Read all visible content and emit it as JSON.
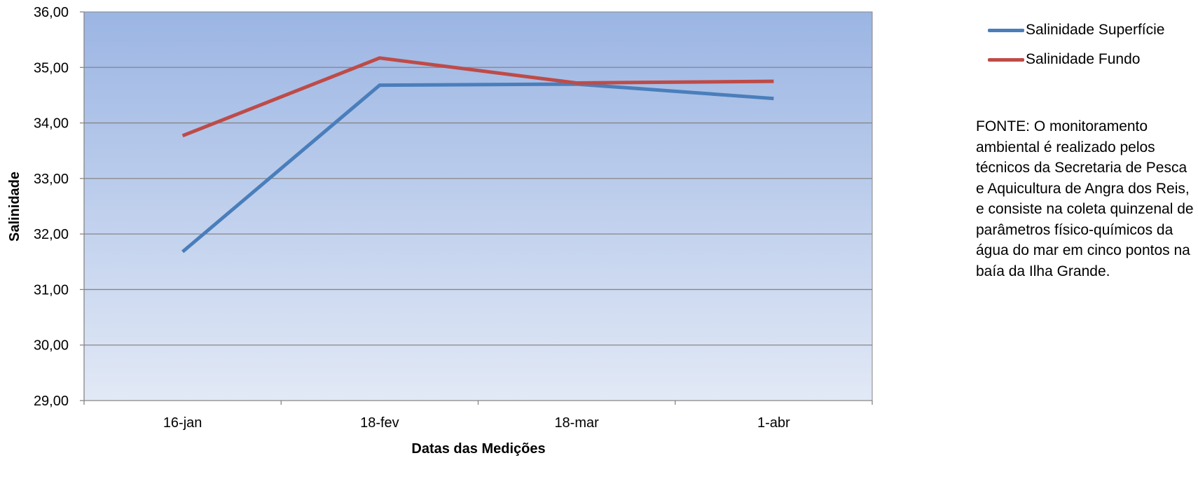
{
  "chart_data": {
    "type": "line",
    "title": "",
    "xlabel": "Datas das Medições",
    "ylabel": "Salinidade",
    "categories": [
      "16-jan",
      "18-fev",
      "18-mar",
      "1-abr"
    ],
    "series": [
      {
        "name": "Salinidade Superfície",
        "color": "#4a7ebb",
        "values": [
          31.68,
          34.68,
          34.7,
          34.44
        ]
      },
      {
        "name": "Salinidade Fundo",
        "color": "#be4b48",
        "values": [
          33.77,
          35.17,
          34.72,
          34.75
        ]
      }
    ],
    "ylim": [
      29,
      36
    ],
    "yticks": [
      "29,00",
      "30,00",
      "31,00",
      "32,00",
      "33,00",
      "34,00",
      "35,00",
      "36,00"
    ],
    "grid": true,
    "legend": "right",
    "plot_background": [
      "#9bb5e3",
      "#e2e9f6"
    ]
  },
  "note": "FONTE: O monitoramento ambiental é realizado pelos técnicos da Secretaria de Pesca e Aquicultura de Angra dos Reis, e consiste na coleta quinzenal de parâmetros físico-químicos da água do mar em cinco pontos na baía da Ilha Grande."
}
